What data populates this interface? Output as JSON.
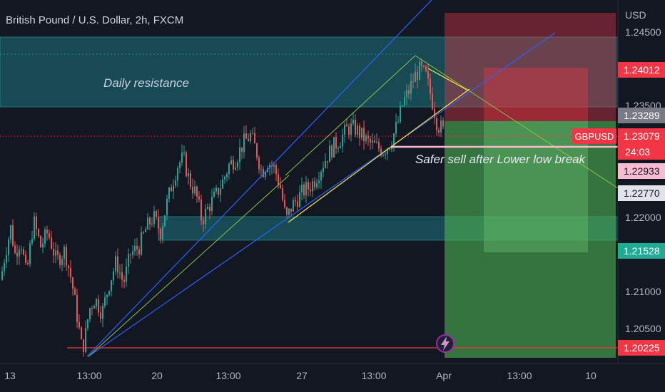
{
  "header": {
    "title": "British Pound / U.S. Dollar, 2h, FXCM",
    "currency": "USD"
  },
  "colors": {
    "background": "#131722",
    "up": "#26a69a",
    "down": "#ef5350",
    "resistance_zone": "#1f7f86",
    "trend_blue": "#2962ff",
    "trend_green": "#8bc34a",
    "trend_yellow": "#ffeb3b"
  },
  "annotations": {
    "daily_resistance": "Daily resistance",
    "safer_sell": "Safer sell after Lower low break"
  },
  "price_axis": {
    "ticks": [
      "1.24500",
      "1.23500",
      "1.22000",
      "1.21000",
      "1.20500"
    ],
    "tags": [
      {
        "label": "1.24012",
        "color": "#f23645",
        "text_color": "#ffffff"
      },
      {
        "label": "1.23289",
        "color": "#787b86",
        "text_color": "#ffffff"
      },
      {
        "label": "1.23079",
        "color": "#f23645",
        "text_color": "#ffffff"
      },
      {
        "label": "24:03",
        "color": "#f23645",
        "text_color": "#ffffff"
      },
      {
        "label": "1.22933",
        "color": "#f8bbd0",
        "text_color": "#131722"
      },
      {
        "label": "1.22770",
        "color": "#e0e3eb",
        "text_color": "#131722"
      },
      {
        "label": "1.21528",
        "color": "#22ab94",
        "text_color": "#ffffff"
      },
      {
        "label": "1.20225",
        "color": "#f23645",
        "text_color": "#ffffff"
      }
    ],
    "symbol_tag": "GBPUSD"
  },
  "time_axis": {
    "ticks": [
      "13",
      "13:00",
      "20",
      "13:00",
      "27",
      "13:00",
      "Apr",
      "13:00",
      "10"
    ]
  },
  "chart_data": {
    "type": "candlestick",
    "symbol": "GBPUSD",
    "timeframe": "2h",
    "last_price": 1.23079,
    "price_range": [
      1.2005,
      1.2475
    ],
    "resistance_zone": [
      1.2335,
      1.2435
    ],
    "support_zone": [
      1.2165,
      1.2195
    ],
    "horizontal_line": 1.20225,
    "short_position": {
      "entry": 1.23079,
      "stop": 1.24605,
      "target": 1.20225
    },
    "second_position": {
      "entry": 1.23289,
      "stop": 1.24012,
      "target": 1.21528
    },
    "path": [
      [
        0,
        1.2115
      ],
      [
        6,
        1.215
      ],
      [
        14,
        1.2185
      ],
      [
        20,
        1.215
      ],
      [
        28,
        1.217
      ],
      [
        36,
        1.212
      ],
      [
        46,
        1.2195
      ],
      [
        56,
        1.216
      ],
      [
        66,
        1.218
      ],
      [
        78,
        1.214
      ],
      [
        90,
        1.2155
      ],
      [
        100,
        1.211
      ],
      [
        108,
        1.206
      ],
      [
        114,
        1.202
      ],
      [
        118,
        1.2035
      ],
      [
        124,
        1.2075
      ],
      [
        132,
        1.209
      ],
      [
        142,
        1.207
      ],
      [
        152,
        1.211
      ],
      [
        162,
        1.214
      ],
      [
        172,
        1.211
      ],
      [
        182,
        1.215
      ],
      [
        194,
        1.216
      ],
      [
        204,
        1.2185
      ],
      [
        214,
        1.22
      ],
      [
        224,
        1.218
      ],
      [
        232,
        1.2215
      ],
      [
        240,
        1.2245
      ],
      [
        248,
        1.227
      ],
      [
        256,
        1.228
      ],
      [
        264,
        1.225
      ],
      [
        274,
        1.223
      ],
      [
        282,
        1.2195
      ],
      [
        292,
        1.2215
      ],
      [
        302,
        1.223
      ],
      [
        312,
        1.225
      ],
      [
        320,
        1.227
      ],
      [
        330,
        1.228
      ],
      [
        340,
        1.23
      ],
      [
        350,
        1.231
      ],
      [
        358,
        1.229
      ],
      [
        366,
        1.226
      ],
      [
        374,
        1.2275
      ],
      [
        384,
        1.2265
      ],
      [
        392,
        1.224
      ],
      [
        400,
        1.2195
      ],
      [
        408,
        1.2215
      ],
      [
        416,
        1.2225
      ],
      [
        424,
        1.2235
      ],
      [
        432,
        1.224
      ],
      [
        440,
        1.225
      ],
      [
        448,
        1.2265
      ],
      [
        456,
        1.228
      ],
      [
        466,
        1.2295
      ],
      [
        476,
        1.2305
      ],
      [
        486,
        1.232
      ],
      [
        496,
        1.232
      ],
      [
        506,
        1.231
      ],
      [
        516,
        1.23
      ],
      [
        526,
        1.2295
      ],
      [
        536,
        1.229
      ],
      [
        546,
        1.23
      ],
      [
        556,
        1.2325
      ],
      [
        564,
        1.2355
      ],
      [
        572,
        1.237
      ],
      [
        580,
        1.239
      ],
      [
        588,
        1.24
      ],
      [
        596,
        1.239
      ],
      [
        604,
        1.236
      ],
      [
        612,
        1.2325
      ],
      [
        618,
        1.232
      ],
      [
        623,
        1.231
      ]
    ]
  }
}
